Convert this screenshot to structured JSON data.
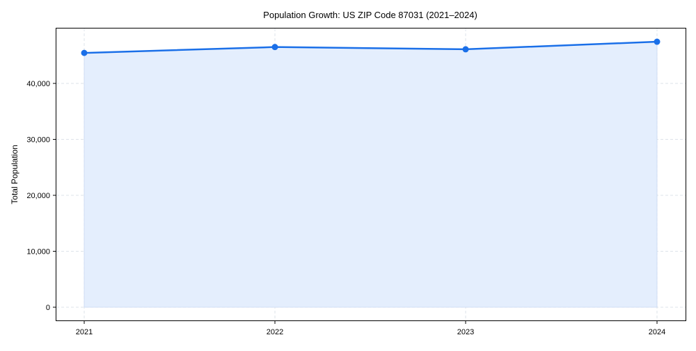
{
  "chart_data": {
    "type": "area",
    "title": "Population Growth: US ZIP Code 87031 (2021–2024)",
    "xlabel": "",
    "ylabel": "Total Population",
    "categories": [
      "2021",
      "2022",
      "2023",
      "2024"
    ],
    "series": [
      {
        "name": "Total Population",
        "values": [
          45450,
          46500,
          46100,
          47450
        ],
        "color": "#1a6fe8",
        "fill": "#e4eefd"
      }
    ],
    "yticks": [
      0,
      10000,
      20000,
      30000,
      40000
    ],
    "ytick_labels": [
      "0",
      "10,000",
      "20,000",
      "30,000",
      "40,000"
    ],
    "ylim": [
      -2500,
      49800
    ],
    "grid": true,
    "legend": null
  }
}
